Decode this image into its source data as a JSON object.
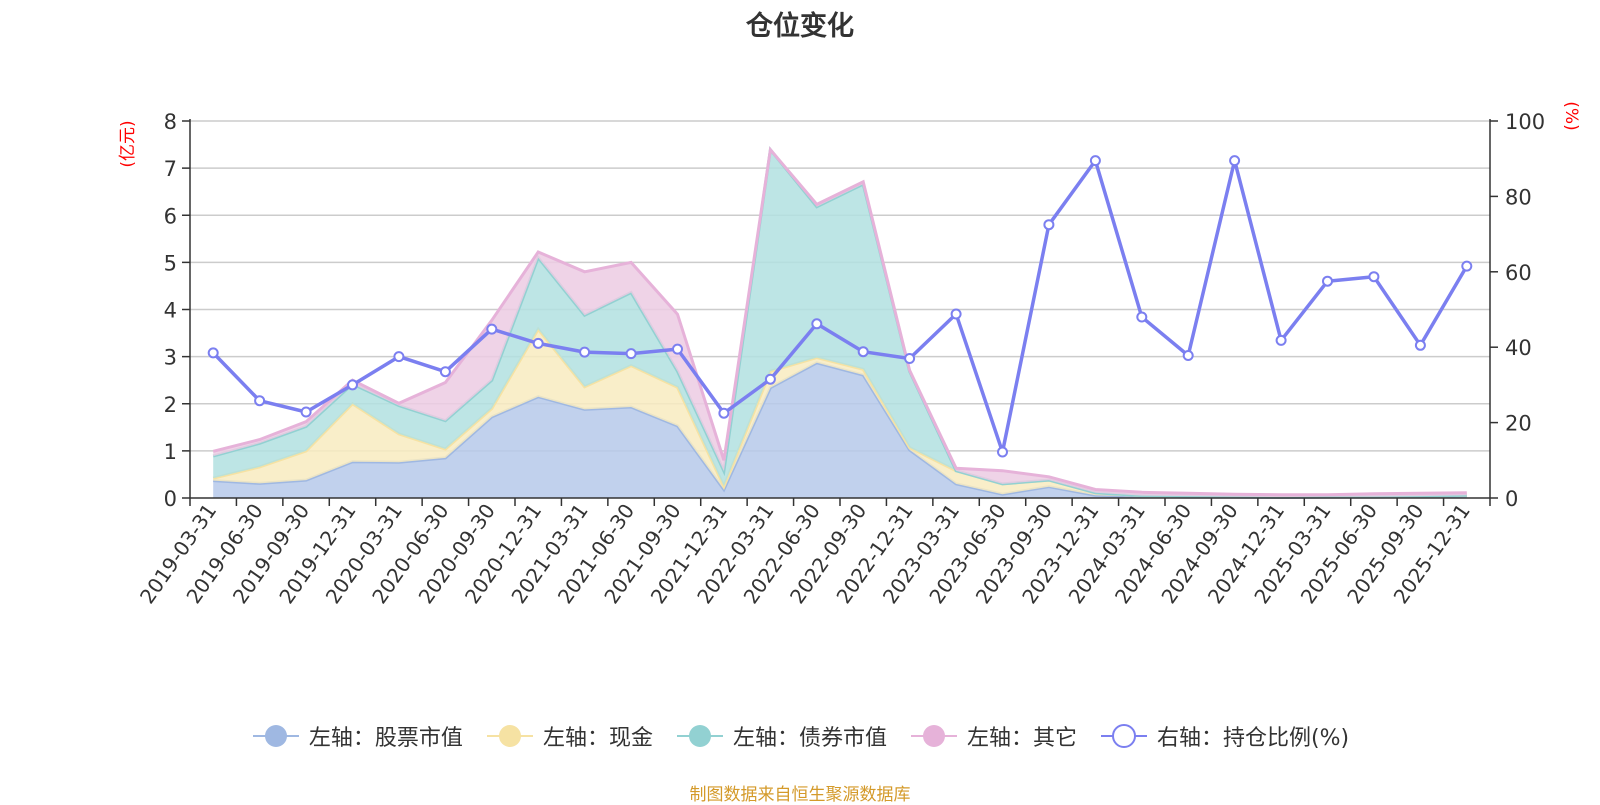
{
  "chart_data": {
    "type": "area",
    "title": "仓位变化",
    "left_axis": {
      "unit": "(亿元)",
      "ylim": [
        0,
        8
      ],
      "ticks": [
        "0",
        "1",
        "2",
        "3",
        "4",
        "5",
        "6",
        "7",
        "8"
      ]
    },
    "right_axis": {
      "unit": "(%)",
      "ylim": [
        0,
        100
      ],
      "ticks": [
        "0",
        "20",
        "40",
        "60",
        "80",
        "100"
      ]
    },
    "categories": [
      "2019-03-31",
      "2019-06-30",
      "2019-09-30",
      "2019-12-31",
      "2020-03-31",
      "2020-06-30",
      "2020-09-30",
      "2020-12-31",
      "2021-03-31",
      "2021-06-30",
      "2021-09-30",
      "2021-12-31",
      "2022-03-31",
      "2022-06-30",
      "2022-09-30",
      "2022-12-31",
      "2023-03-31",
      "2023-06-30",
      "2023-09-30",
      "2023-12-31",
      "2024-03-31",
      "2024-06-30",
      "2024-09-30",
      "2024-12-31",
      "2025-03-31",
      "2025-06-30",
      "2025-09-30",
      "2025-12-31"
    ],
    "stacked_series": [
      {
        "name": "左轴：股票市值",
        "color": "#9fb8e2",
        "fill": "#b6c9ea",
        "values": [
          0.37,
          0.31,
          0.38,
          0.77,
          0.76,
          0.85,
          1.72,
          2.15,
          1.88,
          1.93,
          1.53,
          0.18,
          2.34,
          2.87,
          2.61,
          1.02,
          0.3,
          0.08,
          0.24,
          0.06,
          0.03,
          0.02,
          0.02,
          0.01,
          0.02,
          0.02,
          0.03,
          0.05
        ]
      },
      {
        "name": "左轴：现金",
        "color": "#f6e2a3",
        "fill": "#f8ebbf",
        "values": [
          0.05,
          0.35,
          0.62,
          1.23,
          0.6,
          0.19,
          0.18,
          1.43,
          0.48,
          0.88,
          0.82,
          0.07,
          0.35,
          0.11,
          0.12,
          0.05,
          0.28,
          0.22,
          0.14,
          0.05,
          0.02,
          0.02,
          0.01,
          0.01,
          0.01,
          0.01,
          0.01,
          0.01
        ]
      },
      {
        "name": "左轴：债券市值",
        "color": "#92d1d2",
        "fill": "#b2e0e0",
        "values": [
          0.47,
          0.5,
          0.52,
          0.42,
          0.6,
          0.6,
          0.6,
          1.52,
          1.52,
          1.55,
          0.34,
          0.32,
          4.7,
          3.2,
          3.93,
          1.62,
          0.0,
          0.0,
          0.0,
          0.0,
          0.0,
          0.0,
          0.0,
          0.0,
          0.0,
          0.0,
          0.0,
          0.0
        ]
      },
      {
        "name": "左轴：其它",
        "color": "#e6b2d9",
        "fill": "#eccbe3",
        "values": [
          0.1,
          0.08,
          0.1,
          0.08,
          0.05,
          0.81,
          1.27,
          0.12,
          0.92,
          0.64,
          1.21,
          0.23,
          0.0,
          0.05,
          0.05,
          0.02,
          0.05,
          0.28,
          0.07,
          0.07,
          0.07,
          0.06,
          0.05,
          0.05,
          0.04,
          0.06,
          0.06,
          0.05
        ]
      }
    ],
    "line_series": {
      "name": "右轴：持仓比例(%)",
      "color": "#7b7ff0",
      "values": [
        38.5,
        25.8,
        22.8,
        30.0,
        37.5,
        33.5,
        44.8,
        41.0,
        38.7,
        38.3,
        39.5,
        22.5,
        31.5,
        46.2,
        38.8,
        37.0,
        48.8,
        12.2,
        72.5,
        89.5,
        48.0,
        37.8,
        89.5,
        41.8,
        57.5,
        58.7,
        40.5,
        61.5
      ]
    },
    "grid": true,
    "legend_position": "bottom"
  },
  "legend": [
    {
      "label": "左轴：股票市值",
      "color": "#9fb8e2",
      "kind": "filled"
    },
    {
      "label": "左轴：现金",
      "color": "#f6e2a3",
      "kind": "filled"
    },
    {
      "label": "左轴：债券市值",
      "color": "#92d1d2",
      "kind": "filled"
    },
    {
      "label": "左轴：其它",
      "color": "#e6b2d9",
      "kind": "filled"
    },
    {
      "label": "右轴：持仓比例(%)",
      "color": "#7b7ff0",
      "kind": "hollow"
    }
  ],
  "source_note": "制图数据来自恒生聚源数据库"
}
